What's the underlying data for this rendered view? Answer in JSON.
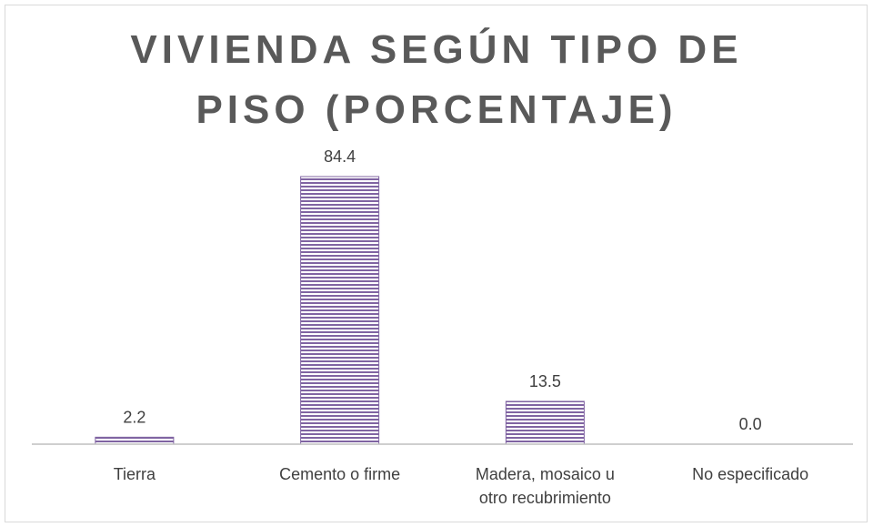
{
  "chart_data": {
    "type": "bar",
    "title": "VIVIENDA SEGÚN TIPO DE PISO (PORCENTAJE)",
    "categories": [
      "Tierra",
      "Cemento o firme",
      "Madera, mosaico u otro recubrimiento",
      "No especificado"
    ],
    "values": [
      2.2,
      84.4,
      13.5,
      0
    ],
    "value_labels": [
      "2.2",
      "84.4",
      "13.5",
      "0.0"
    ],
    "color": "#8064a2"
  }
}
